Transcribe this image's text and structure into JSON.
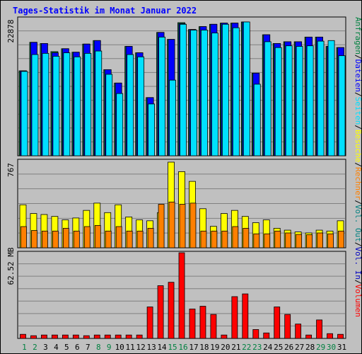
{
  "title": "Tages-Statistik im Monat Januar 2022",
  "colors": {
    "anfragen": "#008040",
    "dateien": "#0000ff",
    "seiten": "#00e0ff",
    "besuche": "#ffff00",
    "rechner": "#ff8000",
    "volumen": "#ff0000",
    "vol_out": "#008080",
    "vol_in": "#0000c0",
    "weekend_day": "#008040",
    "weekday": "#000000"
  },
  "chart_data": [
    {
      "type": "bar",
      "name": "hits-files-pages",
      "ymax_label": "22878",
      "ylim": [
        0,
        22878
      ],
      "categories": [
        "1",
        "2",
        "3",
        "4",
        "5",
        "6",
        "7",
        "8",
        "9",
        "10",
        "11",
        "12",
        "13",
        "14",
        "15",
        "16",
        "17",
        "18",
        "19",
        "20",
        "21",
        "22",
        "23",
        "24",
        "25",
        "26",
        "27",
        "28",
        "29",
        "30",
        "31"
      ],
      "series": [
        {
          "name": "Anfragen",
          "values": [
            14600,
            19500,
            19300,
            17900,
            18400,
            17800,
            19200,
            19800,
            14800,
            12500,
            18800,
            17700,
            10000,
            21200,
            20000,
            22878,
            21700,
            22200,
            22600,
            22800,
            22800,
            23000,
            14200,
            20800,
            19300,
            19600,
            19600,
            20400,
            20400,
            18800,
            18600
          ]
        },
        {
          "name": "Dateien",
          "values": [
            14600,
            19500,
            19300,
            17700,
            18400,
            17800,
            19200,
            19800,
            14800,
            12500,
            18800,
            17700,
            10000,
            21200,
            20000,
            22700,
            21700,
            22200,
            22600,
            22800,
            22800,
            23000,
            14200,
            20800,
            19300,
            19600,
            19600,
            20400,
            20400,
            18800,
            18600
          ]
        },
        {
          "name": "Seiten",
          "values": [
            14500,
            17400,
            17600,
            17100,
            17700,
            17000,
            17600,
            18000,
            14000,
            10700,
            17400,
            17000,
            8900,
            20400,
            13000,
            22600,
            21600,
            21600,
            21100,
            22600,
            22000,
            23000,
            12300,
            19600,
            18600,
            18900,
            18800,
            18900,
            19700,
            19800,
            17200
          ]
        }
      ]
    },
    {
      "type": "bar",
      "name": "visits-hosts",
      "ymax_label": "767",
      "ylim": [
        0,
        767
      ],
      "categories": [
        "1",
        "2",
        "3",
        "4",
        "5",
        "6",
        "7",
        "8",
        "9",
        "10",
        "11",
        "12",
        "13",
        "14",
        "15",
        "16",
        "17",
        "18",
        "19",
        "20",
        "21",
        "22",
        "23",
        "24",
        "25",
        "26",
        "27",
        "28",
        "29",
        "30",
        "31"
      ],
      "series": [
        {
          "name": "Besuche",
          "values": [
            385,
            307,
            298,
            281,
            250,
            267,
            335,
            400,
            315,
            385,
            276,
            250,
            242,
            315,
            767,
            682,
            595,
            350,
            192,
            307,
            335,
            281,
            225,
            250,
            175,
            158,
            142,
            133,
            158,
            150,
            242
          ]
        },
        {
          "name": "Rechner",
          "values": [
            190,
            155,
            150,
            150,
            175,
            150,
            190,
            200,
            150,
            190,
            150,
            150,
            175,
            390,
            410,
            390,
            400,
            150,
            150,
            150,
            190,
            175,
            125,
            125,
            150,
            133,
            120,
            117,
            133,
            125,
            150
          ]
        }
      ]
    },
    {
      "type": "bar",
      "name": "volume",
      "ymax_label": "62.52 MB",
      "ylim": [
        0,
        62.52
      ],
      "categories": [
        "1",
        "2",
        "3",
        "4",
        "5",
        "6",
        "7",
        "8",
        "9",
        "10",
        "11",
        "12",
        "13",
        "14",
        "15",
        "16",
        "17",
        "18",
        "19",
        "20",
        "21",
        "22",
        "23",
        "24",
        "25",
        "26",
        "27",
        "28",
        "29",
        "30",
        "31"
      ],
      "series": [
        {
          "name": "Volumen",
          "values": [
            3.0,
            2.0,
            2.5,
            2.5,
            2.5,
            2.5,
            2.0,
            2.5,
            2.5,
            2.5,
            2.5,
            2.5,
            23.0,
            38.5,
            41.0,
            62.52,
            21.5,
            23.5,
            17.5,
            2.5,
            30.5,
            32.5,
            6.5,
            4.0,
            23.0,
            17.5,
            10.5,
            2.5,
            13.5,
            3.5,
            3.0
          ]
        }
      ]
    }
  ],
  "day_labels": [
    "1",
    "2",
    "3",
    "4",
    "5",
    "6",
    "7",
    "8",
    "9",
    "10",
    "11",
    "12",
    "13",
    "14",
    "15",
    "16",
    "17",
    "18",
    "19",
    "20",
    "21",
    "22",
    "23",
    "24",
    "25",
    "26",
    "27",
    "28",
    "29",
    "30",
    "31"
  ],
  "weekend_days": [
    1,
    2,
    8,
    9,
    15,
    16,
    22,
    23,
    29,
    30
  ],
  "legend": {
    "top": [
      {
        "text": "Anfragen",
        "color": "#008040"
      },
      {
        "text": "/",
        "color": "#000000"
      },
      {
        "text": "Dateien",
        "color": "#0000ff"
      },
      {
        "text": "/",
        "color": "#000000"
      },
      {
        "text": "Seiten",
        "color": "#00e0ff"
      },
      {
        "text": "/",
        "color": "#000000"
      },
      {
        "text": "Besuche",
        "color": "#ffff00"
      },
      {
        "text": "/",
        "color": "#000000"
      },
      {
        "text": "Rechner",
        "color": "#ff8000"
      },
      {
        "text": "/",
        "color": "#000000"
      },
      {
        "text": "Vol. Out",
        "color": "#008080"
      },
      {
        "text": "/",
        "color": "#000000"
      },
      {
        "text": "Vol. In",
        "color": "#0000c0"
      },
      {
        "text": "/",
        "color": "#000000"
      },
      {
        "text": "Volumen",
        "color": "#ff0000"
      }
    ]
  }
}
